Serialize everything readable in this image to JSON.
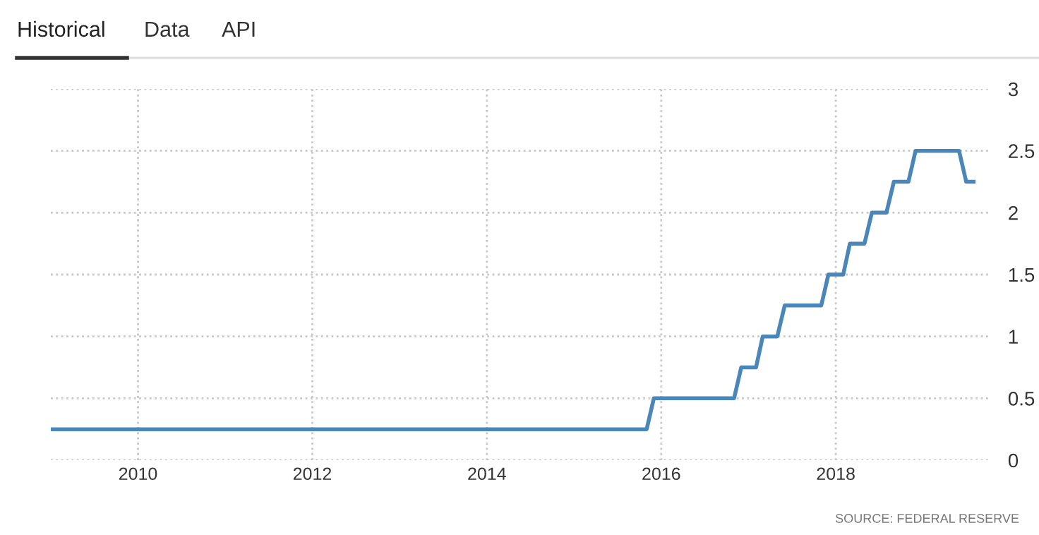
{
  "chart_data": {
    "type": "line",
    "annotations": [
      "Historical",
      "Data",
      "API",
      "SOURCE: FEDERAL RESERVE"
    ],
    "x": [
      "2009-01",
      "2015-11",
      "2015-12",
      "2016-11",
      "2016-12",
      "2017-02",
      "2017-03",
      "2017-05",
      "2017-06",
      "2017-11",
      "2017-12",
      "2018-02",
      "2018-03",
      "2018-05",
      "2018-06",
      "2018-08",
      "2018-09",
      "2018-11",
      "2018-12",
      "2019-06",
      "2019-07",
      "2019-08"
    ],
    "series": [
      {
        "color": "#4a86b8",
        "values": [
          0.25,
          0.25,
          0.5,
          0.5,
          0.75,
          0.75,
          1.0,
          1.0,
          1.25,
          1.25,
          1.5,
          1.5,
          1.75,
          1.75,
          2.0,
          2.0,
          2.25,
          2.25,
          2.5,
          2.5,
          2.25,
          2.25
        ]
      }
    ],
    "xlim": [
      "2009-01",
      "2019-10"
    ],
    "xticks": [
      "2010",
      "2012",
      "2014",
      "2016",
      "2018"
    ],
    "ylim": [
      0,
      3
    ],
    "yticks": [
      0,
      0.5,
      1,
      1.5,
      2,
      2.5,
      3
    ],
    "grid": true,
    "legend": false,
    "marker": "none",
    "line_style": "solid"
  }
}
